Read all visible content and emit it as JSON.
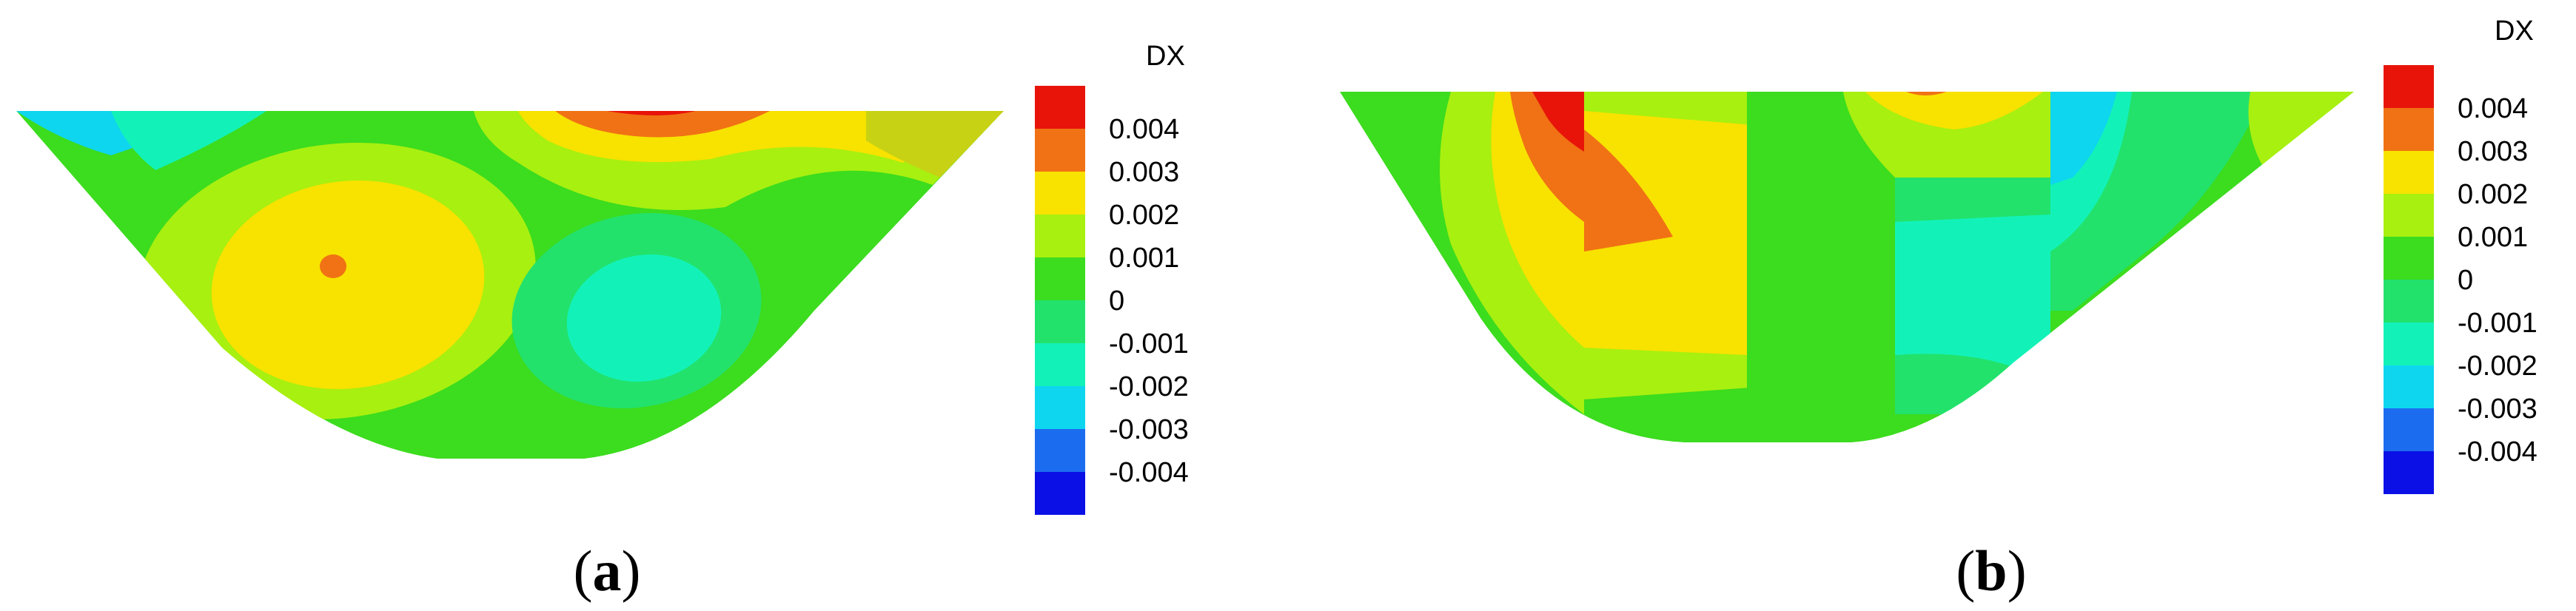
{
  "legend": {
    "title": "DX",
    "levels": [
      {
        "value": "0.004",
        "color": "#E8140A"
      },
      {
        "value": "0.003",
        "color": "#F07214"
      },
      {
        "value": "0.002",
        "color": "#F8E200"
      },
      {
        "value": "0.001",
        "color": "#A8F010"
      },
      {
        "value": "0",
        "color": "#3CDC1E"
      },
      {
        "value": "-0.001",
        "color": "#22E26C"
      },
      {
        "value": "-0.002",
        "color": "#12F2B8"
      },
      {
        "value": "-0.003",
        "color": "#0ED6EE"
      },
      {
        "value": "-0.004",
        "color": "#1C6CF0"
      }
    ],
    "bottom_color": "#0A10E6"
  },
  "panels": [
    {
      "id": "a",
      "caption_letter": "a"
    },
    {
      "id": "b",
      "caption_letter": "b"
    }
  ],
  "colors": {
    "base": "#3CDC1E",
    "red": "#E8140A",
    "orange": "#F07214",
    "yellow": "#F8E200",
    "lime": "#A8F010",
    "mint": "#22E26C",
    "teal": "#12F2B8",
    "cyan": "#0ED6EE",
    "blue": "#1C6CF0",
    "olive": "#C8D214"
  }
}
